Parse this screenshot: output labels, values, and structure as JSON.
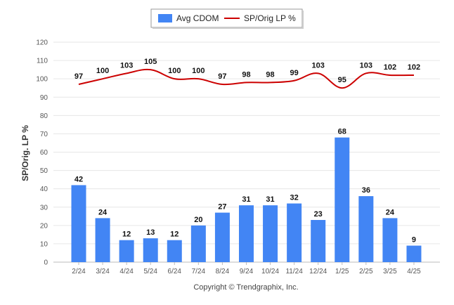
{
  "chart_data": {
    "type": "bar",
    "categories": [
      "2/24",
      "3/24",
      "4/24",
      "5/24",
      "6/24",
      "7/24",
      "8/24",
      "9/24",
      "10/24",
      "11/24",
      "12/24",
      "1/25",
      "2/25",
      "3/25",
      "4/25"
    ],
    "series": [
      {
        "name": "Avg CDOM",
        "type": "bar",
        "color": "#4285f4",
        "values": [
          42,
          24,
          12,
          13,
          12,
          20,
          27,
          31,
          31,
          32,
          23,
          68,
          36,
          24,
          9
        ]
      },
      {
        "name": "SP/Orig LP %",
        "type": "line",
        "color": "#cc0000",
        "values": [
          97,
          100,
          103,
          105,
          100,
          100,
          97,
          98,
          98,
          99,
          103,
          95,
          103,
          102,
          102
        ]
      }
    ],
    "ylabel": "SP/Orig. LP %",
    "ylim": [
      0,
      120
    ],
    "yticks": [
      0,
      10,
      20,
      30,
      40,
      50,
      60,
      70,
      80,
      90,
      100,
      110,
      120
    ],
    "grid": true,
    "legend_position": "top"
  },
  "footer": "Copyright © Trendgraphix, Inc."
}
